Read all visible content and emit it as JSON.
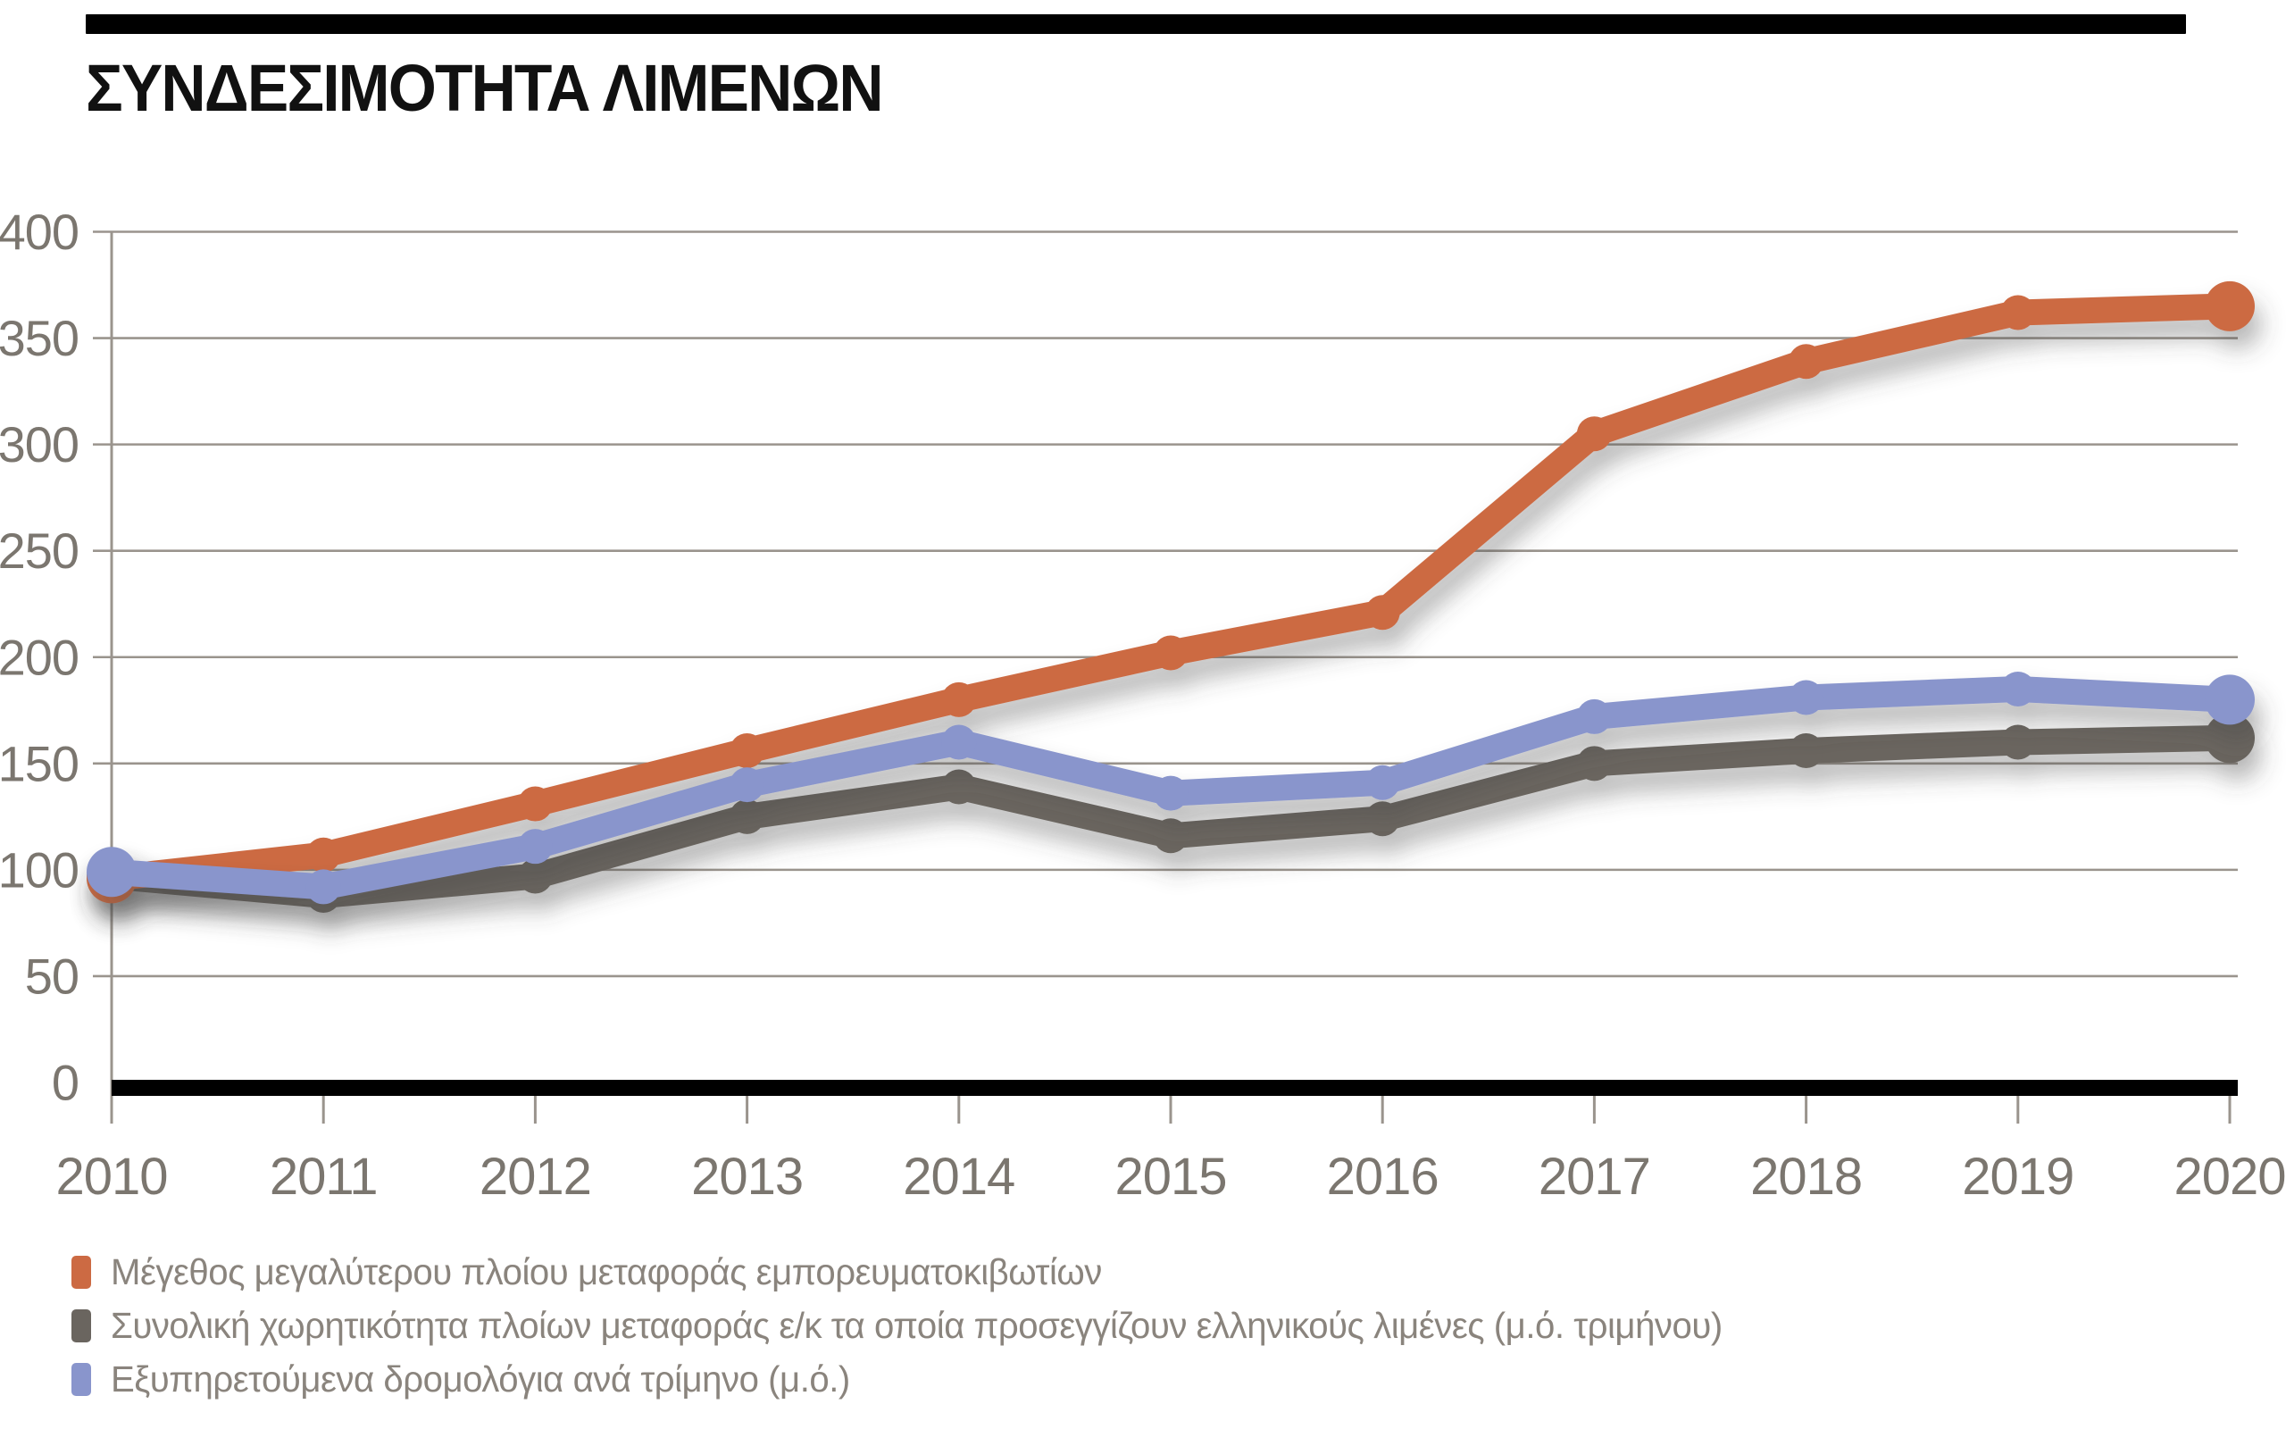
{
  "header": {
    "title": "ΣΥΝΔΕΣΙΜΟΤΗΤΑ ΛΙΜΕΝΩΝ"
  },
  "colors": {
    "bar_black": "#000000",
    "grid": "#9a948d",
    "axis_line": "#9a948d",
    "axis_label_text": "#7b766f",
    "legend_text": "#8a847d",
    "series_orange": "#cc6a43",
    "series_gray": "#6a655f",
    "series_blue": "#8995cc",
    "shadow": "#4a4a4a"
  },
  "chart_data": {
    "type": "line",
    "title": "ΣΥΝΔΕΣΙΜΟΤΗΤΑ ΛΙΜΕΝΩΝ",
    "categories": [
      "2010",
      "2011",
      "2012",
      "2013",
      "2014",
      "2015",
      "2016",
      "2017",
      "2018",
      "2019",
      "2020"
    ],
    "series": [
      {
        "name": "Μέγεθος μεγαλύτερου πλοίου μεταφοράς εμπορευματοκιβωτίων",
        "color": "#cc6a43",
        "values": [
          96,
          107,
          131,
          156,
          180,
          202,
          221,
          305,
          339,
          362,
          365
        ]
      },
      {
        "name": "Συνολική χωρητικότητα πλοίων μεταφοράς ε/κ τα οποία προσεγγίζουν ελληνικούς λιμένες (μ.ό. τριμήνου)",
        "color": "#6a655f",
        "values": [
          97,
          88,
          97,
          125,
          139,
          116,
          124,
          150,
          156,
          160,
          162
        ]
      },
      {
        "name": "Εξυπηρετούμενα δρομολόγια ανά τρίμηνο (μ.ό.)",
        "color": "#8995cc",
        "values": [
          99,
          92,
          111,
          140,
          160,
          136,
          141,
          172,
          181,
          185,
          180
        ]
      }
    ],
    "draw_order": [
      1,
      0,
      2
    ],
    "xlabel": "",
    "ylabel": "",
    "ylim": [
      0,
      400
    ],
    "yticks": [
      0,
      50,
      100,
      150,
      200,
      250,
      300,
      350,
      400
    ],
    "grid": true,
    "legend_position": "bottom-left"
  }
}
